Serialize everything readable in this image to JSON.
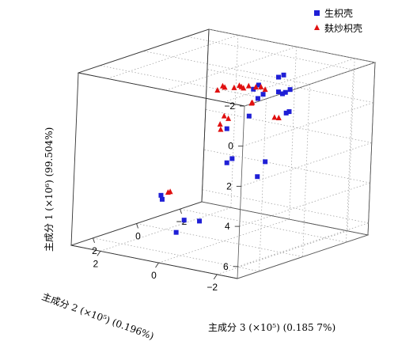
{
  "chart_data": {
    "type": "scatter",
    "title": "",
    "axes": {
      "pc1": {
        "label": "主成分 1 (×10⁶) (99.504%)",
        "ticks": [
          "−2",
          "0",
          "2",
          "4",
          "6"
        ]
      },
      "pc2": {
        "label": "主成分 2 (×10⁵) (0.196%)",
        "ticks": [
          "−2",
          "0",
          "2"
        ]
      },
      "pc3": {
        "label": "主成分 3 (×10⁵) (0.185 7%)",
        "ticks": [
          "2",
          "0",
          "−2"
        ]
      }
    },
    "legend": {
      "placement": "top-right"
    },
    "grid": true,
    "series": [
      {
        "name": "生枳壳",
        "color": "#1f1fd6",
        "marker": "square",
        "points": [
          {
            "pc1": -2.2,
            "pc2": -1.8,
            "pc3": 0.0
          },
          {
            "pc1": -2.1,
            "pc2": -1.7,
            "pc3": 0.1
          },
          {
            "pc1": -1.8,
            "pc2": -1.4,
            "pc3": 0.6
          },
          {
            "pc1": -1.6,
            "pc2": -1.3,
            "pc3": 0.7
          },
          {
            "pc1": -1.2,
            "pc2": -1.5,
            "pc3": -0.2
          },
          {
            "pc1": -1.1,
            "pc2": -1.2,
            "pc3": 0.1
          },
          {
            "pc1": -1.2,
            "pc2": -1.6,
            "pc3": -0.6
          },
          {
            "pc1": -0.9,
            "pc2": -1.3,
            "pc3": -0.8
          },
          {
            "pc1": -0.8,
            "pc2": -1.2,
            "pc3": -0.8
          },
          {
            "pc1": -0.9,
            "pc2": -1.1,
            "pc3": 0.2
          },
          {
            "pc1": -0.1,
            "pc2": -1.6,
            "pc3": -0.6
          },
          {
            "pc1": 0.0,
            "pc2": -1.5,
            "pc3": -0.6
          },
          {
            "pc1": 0.0,
            "pc2": -0.9,
            "pc3": 0.3
          },
          {
            "pc1": 0.5,
            "pc2": -0.6,
            "pc3": 0.9
          },
          {
            "pc1": 2.3,
            "pc2": -0.5,
            "pc3": 0.7
          },
          {
            "pc1": 2.1,
            "pc2": -0.6,
            "pc3": 0.6
          },
          {
            "pc1": 2.5,
            "pc2": -1.0,
            "pc3": -0.4
          },
          {
            "pc1": 3.2,
            "pc2": -0.9,
            "pc3": -0.2
          },
          {
            "pc1": 3.7,
            "pc2": 0.6,
            "pc3": 2.2
          },
          {
            "pc1": 4.0,
            "pc2": 0.7,
            "pc3": 2.0
          },
          {
            "pc1": 5.5,
            "pc2": 0.8,
            "pc3": 0.8
          },
          {
            "pc1": 6.3,
            "pc2": 1.2,
            "pc3": 0.6
          },
          {
            "pc1": 6.2,
            "pc2": 1.3,
            "pc3": -0.6
          }
        ]
      },
      {
        "name": "麸炒枳壳",
        "color": "#e01010",
        "marker": "triangle",
        "points": [
          {
            "pc1": -2.2,
            "pc2": -1.2,
            "pc3": 2.0
          },
          {
            "pc1": -2.1,
            "pc2": -1.2,
            "pc3": 1.9
          },
          {
            "pc1": -2.0,
            "pc2": -1.1,
            "pc3": 2.1
          },
          {
            "pc1": -2.0,
            "pc2": -1.3,
            "pc3": 1.6
          },
          {
            "pc1": -2.1,
            "pc2": -1.4,
            "pc3": 1.5
          },
          {
            "pc1": -2.0,
            "pc2": -1.4,
            "pc3": 1.4
          },
          {
            "pc1": -1.9,
            "pc2": -1.4,
            "pc3": 1.3
          },
          {
            "pc1": -2.0,
            "pc2": -1.5,
            "pc3": 1.2
          },
          {
            "pc1": -1.9,
            "pc2": -1.6,
            "pc3": 1.0
          },
          {
            "pc1": -1.9,
            "pc2": -1.7,
            "pc3": 0.9
          },
          {
            "pc1": -1.7,
            "pc2": -1.7,
            "pc3": 0.7
          },
          {
            "pc1": -1.1,
            "pc2": -1.5,
            "pc3": 1.0
          },
          {
            "pc1": -1.0,
            "pc2": -1.4,
            "pc3": 0.9
          },
          {
            "pc1": -0.5,
            "pc2": -1.0,
            "pc3": 1.6
          },
          {
            "pc1": -0.3,
            "pc2": -1.0,
            "pc3": 1.4
          },
          {
            "pc1": 0.2,
            "pc2": -0.9,
            "pc3": 1.6
          },
          {
            "pc1": 0.0,
            "pc2": -0.8,
            "pc3": 1.5
          },
          {
            "pc1": 0.1,
            "pc2": -1.4,
            "pc3": -0.2
          },
          {
            "pc1": 0.2,
            "pc2": -1.4,
            "pc3": -0.4
          },
          {
            "pc1": 3.2,
            "pc2": 0.0,
            "pc3": 2.6
          },
          {
            "pc1": 3.2,
            "pc2": 0.0,
            "pc3": 2.7
          }
        ]
      }
    ]
  }
}
